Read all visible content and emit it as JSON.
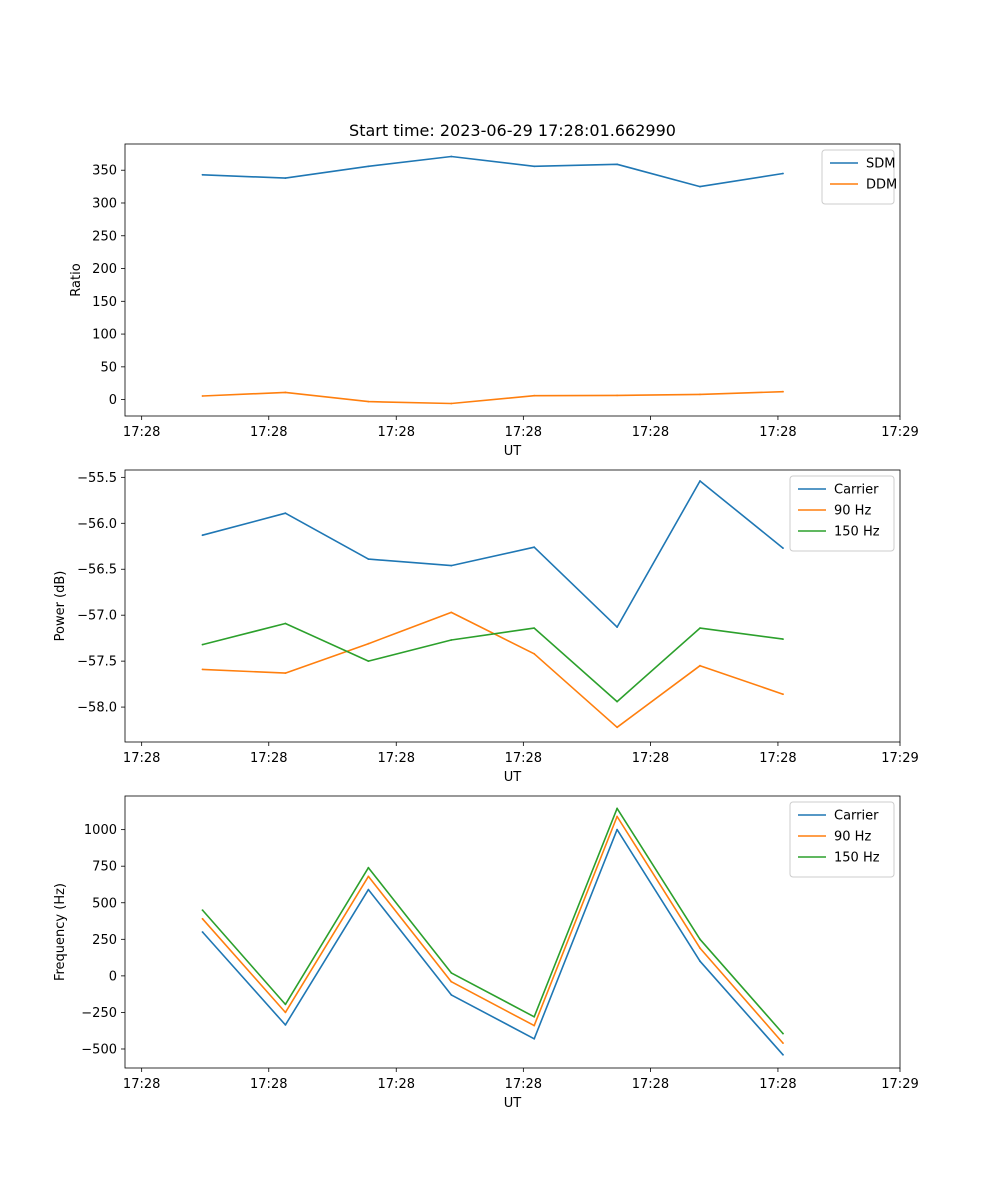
{
  "figure": {
    "title": "Start time: 2023-06-29 17:28:01.662990"
  },
  "chart_data": [
    {
      "type": "line",
      "title": "Start time: 2023-06-29 17:28:01.662990",
      "xlabel": "UT",
      "ylabel": "Ratio",
      "xtick_labels": [
        "17:28",
        "17:28",
        "17:28",
        "17:28",
        "17:28",
        "17:28",
        "17:29"
      ],
      "ylim": [
        -25,
        390
      ],
      "yticks": [
        0,
        50,
        100,
        150,
        200,
        250,
        300,
        350
      ],
      "legend_position": "upper-right",
      "grid": false,
      "series": [
        {
          "name": "SDM",
          "color": "#1f77b4",
          "values": [
            343,
            338,
            356,
            371,
            356,
            359,
            325,
            345
          ]
        },
        {
          "name": "DDM",
          "color": "#ff7f0e",
          "values": [
            5.5,
            11,
            -3,
            -6,
            6,
            6.5,
            8,
            12
          ]
        }
      ]
    },
    {
      "type": "line",
      "title": "",
      "xlabel": "UT",
      "ylabel": "Power (dB)",
      "xtick_labels": [
        "17:28",
        "17:28",
        "17:28",
        "17:28",
        "17:28",
        "17:28",
        "17:29"
      ],
      "ylim": [
        -58.38,
        -55.42
      ],
      "yticks": [
        -58.0,
        -57.5,
        -57.0,
        -56.5,
        -56.0,
        -55.5
      ],
      "ytick_labels": [
        "−58.0",
        "−57.5",
        "−57.0",
        "−56.5",
        "−56.0",
        "−55.5"
      ],
      "legend_position": "upper-right",
      "grid": false,
      "series": [
        {
          "name": "Carrier",
          "color": "#1f77b4",
          "values": [
            -56.13,
            -55.89,
            -56.39,
            -56.46,
            -56.26,
            -57.13,
            -55.54,
            -56.27
          ]
        },
        {
          "name": "90 Hz",
          "color": "#ff7f0e",
          "values": [
            -57.59,
            -57.63,
            -57.31,
            -56.97,
            -57.42,
            -58.22,
            -57.55,
            -57.86
          ]
        },
        {
          "name": "150 Hz",
          "color": "#2ca02c",
          "values": [
            -57.32,
            -57.09,
            -57.5,
            -57.27,
            -57.14,
            -57.94,
            -57.14,
            -57.26
          ]
        }
      ]
    },
    {
      "type": "line",
      "title": "",
      "xlabel": "UT",
      "ylabel": "Frequency (Hz)",
      "xtick_labels": [
        "17:28",
        "17:28",
        "17:28",
        "17:28",
        "17:28",
        "17:28",
        "17:29"
      ],
      "ylim": [
        -630,
        1230
      ],
      "yticks": [
        -500,
        -250,
        0,
        250,
        500,
        750,
        1000
      ],
      "ytick_labels": [
        "−500",
        "−250",
        "0",
        "250",
        "500",
        "750",
        "1000"
      ],
      "legend_position": "upper-right",
      "grid": false,
      "series": [
        {
          "name": "Carrier",
          "color": "#1f77b4",
          "values": [
            300,
            -335,
            590,
            -130,
            -430,
            1000,
            100,
            -540
          ]
        },
        {
          "name": "90 Hz",
          "color": "#ff7f0e",
          "values": [
            390,
            -250,
            680,
            -40,
            -340,
            1090,
            190,
            -460
          ]
        },
        {
          "name": "150 Hz",
          "color": "#2ca02c",
          "values": [
            450,
            -195,
            740,
            20,
            -280,
            1145,
            250,
            -395
          ]
        }
      ]
    }
  ]
}
